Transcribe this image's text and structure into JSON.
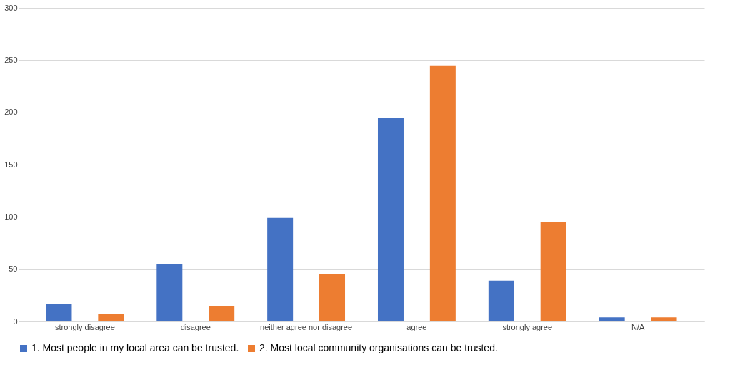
{
  "chart_data": {
    "type": "bar",
    "categories": [
      "strongly disagree",
      "disagree",
      "neither agree nor disagree",
      "agree",
      "strongly agree",
      "N/A"
    ],
    "series": [
      {
        "name": "1. Most people in my local area can be trusted.",
        "color": "#4472c4",
        "values": [
          17,
          55,
          99,
          195,
          39,
          4
        ]
      },
      {
        "name": "2. Most local community organisations can be trusted.",
        "color": "#ed7d31",
        "values": [
          7,
          15,
          45,
          245,
          95,
          4
        ]
      }
    ],
    "ylim": [
      0,
      300
    ],
    "yticks": [
      0,
      50,
      100,
      150,
      200,
      250,
      300
    ],
    "grid": "y",
    "legend": "bottom"
  }
}
